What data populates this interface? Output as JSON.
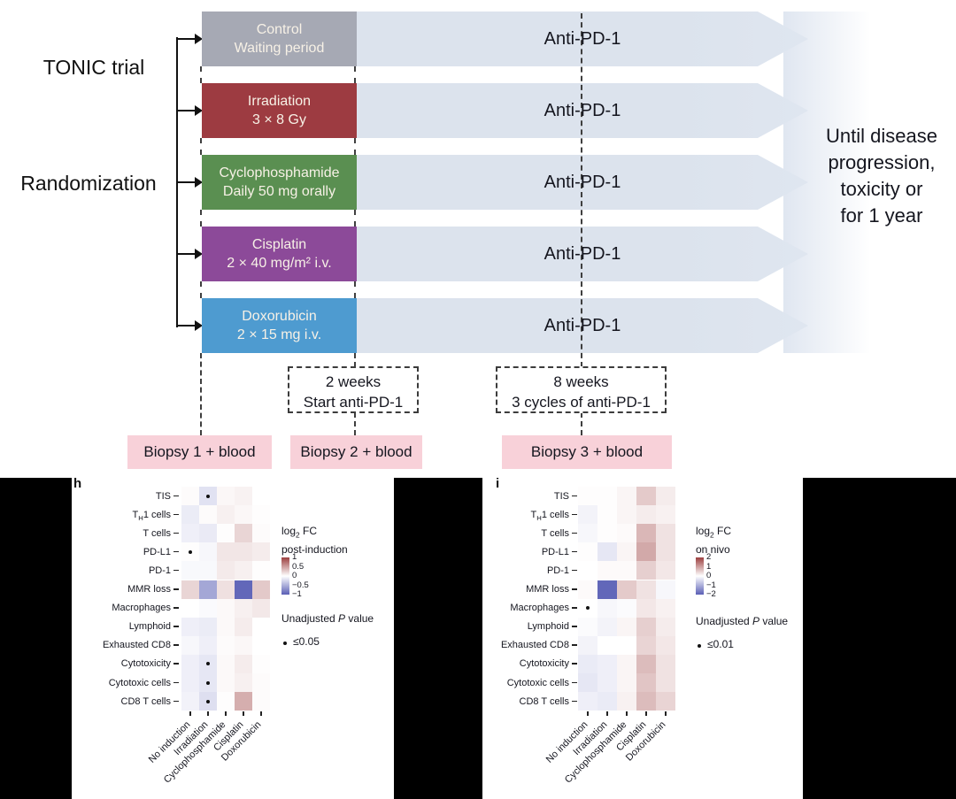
{
  "diagram": {
    "trial_label": "TONIC trial",
    "randomization_label": "Randomization",
    "anti_pd1_label": "Anti-PD-1",
    "until_text_lines": [
      "Until disease",
      "progression,",
      "toxicity or",
      "for 1 year"
    ],
    "arms": [
      {
        "line1": "Control",
        "line2": "Waiting period",
        "color": "#a6a9b4"
      },
      {
        "line1": "Irradiation",
        "line2": "3 × 8 Gy",
        "color": "#9d3b41"
      },
      {
        "line1": "Cyclophosphamide",
        "line2": "Daily 50 mg orally",
        "color": "#5a8f51"
      },
      {
        "line1": "Cisplatin",
        "line2": "2 × 40 mg/m² i.v.",
        "color": "#8c4a99"
      },
      {
        "line1": "Doxorubicin",
        "line2": "2 × 15 mg i.v.",
        "color": "#4e9bd0"
      }
    ],
    "milestones": [
      {
        "line1": "2 weeks",
        "line2": "Start anti-PD-1"
      },
      {
        "line1": "8 weeks",
        "line2": "3 cycles of anti-PD-1"
      }
    ],
    "biopsies": [
      "Biopsy 1 + blood",
      "Biopsy 2 + blood",
      "Biopsy 3 + blood"
    ],
    "colors": {
      "bar_fill": "#dce3ed",
      "biopsy_bg": "#f8d1d9",
      "box_text": "#f7f1e6",
      "heat_pos_end": "#9c3f3f",
      "heat_neg_end": "#5a5fb5"
    }
  },
  "chart_data": [
    {
      "type": "heatmap",
      "panel": "h",
      "legend_title_lines": [
        "log2 FC",
        "post-induction"
      ],
      "rows": [
        "TIS",
        "TH1 cells",
        "T cells",
        "PD-L1",
        "PD-1",
        "MMR loss",
        "Macrophages",
        "Lymphoid",
        "Exhausted CD8",
        "Cytotoxicity",
        "Cytotoxic cells",
        "CD8 T cells"
      ],
      "columns": [
        "No induction",
        "Irradiation",
        "Cyclophosphamide",
        "Cisplatin",
        "Doxorubicin"
      ],
      "values": [
        [
          0.02,
          -0.18,
          0.04,
          0.07,
          0
        ],
        [
          -0.12,
          0.02,
          0.08,
          0.04,
          0.01
        ],
        [
          -0.1,
          -0.13,
          0.01,
          0.22,
          0.02
        ],
        [
          0.01,
          -0.05,
          0.13,
          0.13,
          0.1
        ],
        [
          -0.04,
          -0.04,
          0.11,
          0.08,
          0.01
        ],
        [
          0.22,
          -0.55,
          0.16,
          -0.95,
          0.28
        ],
        [
          0,
          -0.03,
          0.03,
          0.08,
          0.12
        ],
        [
          -0.1,
          -0.12,
          0.03,
          0.1,
          0
        ],
        [
          -0.05,
          -0.1,
          0.02,
          0.04,
          0
        ],
        [
          -0.1,
          -0.15,
          0.03,
          0.1,
          0.01
        ],
        [
          -0.1,
          -0.15,
          0.03,
          0.08,
          0.02
        ],
        [
          -0.08,
          -0.2,
          0.01,
          0.42,
          0.02
        ]
      ],
      "significant_dots": [
        [
          0,
          1
        ],
        [
          3,
          0
        ],
        [
          9,
          1
        ],
        [
          10,
          1
        ],
        [
          11,
          1
        ]
      ],
      "scale": {
        "min": -1,
        "max": 1,
        "tick_labels": [
          "1",
          "0.5",
          "0",
          "−0.5",
          "−1"
        ]
      },
      "pvalue_label": "Unadjusted P value",
      "pvalue_threshold": "≤0.05"
    },
    {
      "type": "heatmap",
      "panel": "i",
      "legend_title_lines": [
        "log2 FC",
        "on nivo"
      ],
      "rows": [
        "TIS",
        "TH1 cells",
        "T cells",
        "PD-L1",
        "PD-1",
        "MMR loss",
        "Macrophages",
        "Lymphoid",
        "Exhausted CD8",
        "Cytotoxicity",
        "Cytotoxic cells",
        "CD8 T cells"
      ],
      "columns": [
        "No induction",
        "Irradiation",
        "Cyclophosphamide",
        "Cisplatin",
        "Doxorubicin"
      ],
      "values": [
        [
          0.02,
          0.02,
          0.1,
          0.55,
          0.2
        ],
        [
          -0.15,
          0.02,
          0.1,
          0.2,
          0.15
        ],
        [
          -0.1,
          0.02,
          0.05,
          0.75,
          0.3
        ],
        [
          0.02,
          -0.3,
          0.1,
          0.9,
          0.3
        ],
        [
          0,
          0.05,
          0.05,
          0.5,
          0.25
        ],
        [
          0.05,
          -1.9,
          0.55,
          0.3,
          -0.1
        ],
        [
          0,
          -0.1,
          -0.05,
          0.25,
          0.15
        ],
        [
          -0.05,
          -0.15,
          0.1,
          0.5,
          0.2
        ],
        [
          -0.15,
          0,
          0,
          0.45,
          0.25
        ],
        [
          -0.25,
          -0.2,
          0.1,
          0.7,
          0.3
        ],
        [
          -0.3,
          -0.2,
          0.1,
          0.6,
          0.3
        ],
        [
          -0.2,
          -0.25,
          0.15,
          0.7,
          0.45
        ]
      ],
      "significant_dots": [
        [
          6,
          0
        ]
      ],
      "scale": {
        "min": -2,
        "max": 2,
        "tick_labels": [
          "2",
          "1",
          "0",
          "−1",
          "−2"
        ]
      },
      "pvalue_label": "Unadjusted P value",
      "pvalue_threshold": "≤0.01"
    }
  ]
}
